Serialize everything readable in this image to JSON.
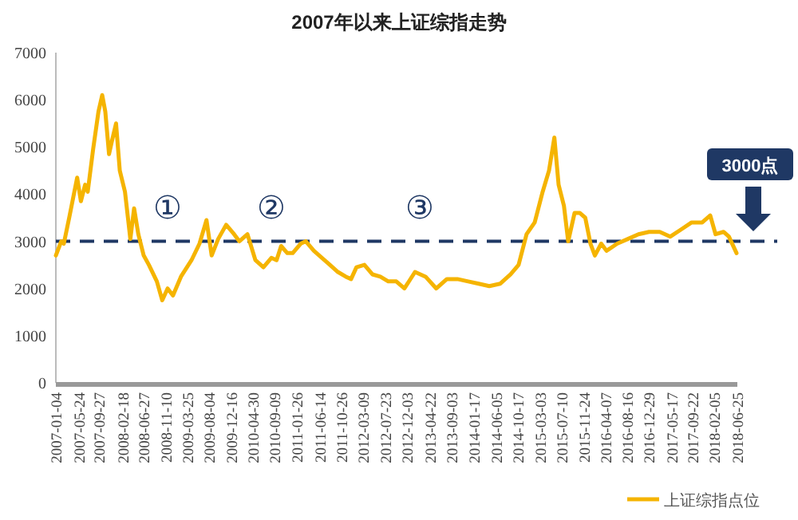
{
  "chart_data": {
    "type": "line",
    "title": "2007年以来上证综指走势",
    "annotations": [
      "①",
      "②",
      "③",
      "3000点"
    ],
    "xlim": [
      "2007-01-04",
      "2018-06-25"
    ],
    "xticks": [
      "2007-01-04",
      "2007-05-24",
      "2007-09-27",
      "2008-02-18",
      "2008-06-27",
      "2008-11-10",
      "2009-03-25",
      "2009-08-04",
      "2009-12-16",
      "2010-04-30",
      "2010-09-09",
      "2011-01-26",
      "2011-06-14",
      "2011-10-26",
      "2012-03-09",
      "2012-07-23",
      "2012-12-03",
      "2013-04-22",
      "2013-09-03",
      "2014-01-17",
      "2014-06-05",
      "2014-10-17",
      "2015-03-03",
      "2015-07-10",
      "2015-11-24",
      "2016-04-07",
      "2016-08-16",
      "2016-12-29",
      "2017-05-17",
      "2017-09-22",
      "2018-02-05",
      "2018-06-25"
    ],
    "ylim": [
      0,
      7000
    ],
    "yticks": [
      0,
      1000,
      2000,
      3000,
      4000,
      5000,
      6000,
      7000
    ],
    "ref_lines": [
      {
        "axis": "y",
        "value": 3000,
        "color": "#1f3864",
        "line_style": "dashed"
      }
    ],
    "legend": "bottom right",
    "series": [
      {
        "name": "上证综指点位",
        "color": "#f5b400",
        "x": [
          "2007-01-04",
          "2007-02-06",
          "2007-02-22",
          "2007-03-27",
          "2007-05-15",
          "2007-06-07",
          "2007-07-03",
          "2007-07-19",
          "2007-08-21",
          "2007-09-23",
          "2007-10-16",
          "2007-11-04",
          "2007-11-27",
          "2007-12-13",
          "2008-01-09",
          "2008-02-01",
          "2008-03-04",
          "2008-04-06",
          "2008-04-29",
          "2008-05-25",
          "2008-06-27",
          "2008-07-29",
          "2008-09-16",
          "2008-10-19",
          "2008-11-21",
          "2008-12-24",
          "2009-02-11",
          "2009-04-17",
          "2009-06-05",
          "2009-07-18",
          "2009-08-19",
          "2009-09-28",
          "2009-11-16",
          "2010-01-04",
          "2010-02-05",
          "2010-03-27",
          "2010-05-15",
          "2010-07-03",
          "2010-08-21",
          "2010-09-22",
          "2010-10-20",
          "2010-11-27",
          "2010-12-30",
          "2011-02-17",
          "2011-03-21",
          "2011-05-09",
          "2011-06-28",
          "2011-08-16",
          "2011-10-04",
          "2011-11-22",
          "2011-12-24",
          "2012-01-26",
          "2012-03-15",
          "2012-05-03",
          "2012-06-21",
          "2012-08-09",
          "2012-09-27",
          "2012-11-16",
          "2013-01-20",
          "2013-03-26",
          "2013-05-31",
          "2013-08-04",
          "2013-10-08",
          "2013-12-13",
          "2014-02-16",
          "2014-04-22",
          "2014-06-27",
          "2014-08-31",
          "2014-10-19",
          "2014-12-07",
          "2015-01-26",
          "2015-03-16",
          "2015-04-24",
          "2015-05-27",
          "2015-06-22",
          "2015-07-25",
          "2015-08-20",
          "2015-09-28",
          "2015-10-31",
          "2015-12-03",
          "2016-01-04",
          "2016-01-31",
          "2016-03-10",
          "2016-04-12",
          "2016-06-16",
          "2016-08-21",
          "2016-10-25",
          "2016-12-29",
          "2017-03-05",
          "2017-05-09",
          "2017-07-14",
          "2017-09-17",
          "2017-11-21",
          "2018-01-09",
          "2018-02-11",
          "2018-04-01",
          "2018-05-04",
          "2018-06-20"
        ],
        "values": [
          2700,
          3000,
          2950,
          3500,
          4350,
          3850,
          4200,
          4050,
          4950,
          5750,
          6100,
          5750,
          4850,
          5100,
          5500,
          4500,
          4050,
          3050,
          3700,
          3150,
          2700,
          2500,
          2150,
          1750,
          2000,
          1850,
          2250,
          2600,
          2950,
          3450,
          2700,
          3050,
          3350,
          3150,
          3000,
          3150,
          2600,
          2450,
          2650,
          2600,
          2900,
          2750,
          2750,
          2950,
          3000,
          2800,
          2650,
          2500,
          2350,
          2250,
          2200,
          2450,
          2500,
          2300,
          2250,
          2150,
          2150,
          2000,
          2350,
          2250,
          2000,
          2200,
          2200,
          2150,
          2100,
          2050,
          2100,
          2300,
          2500,
          3150,
          3400,
          4050,
          4500,
          5200,
          4200,
          3750,
          3000,
          3600,
          3600,
          3500,
          2950,
          2700,
          2950,
          2800,
          2950,
          3050,
          3150,
          3200,
          3200,
          3100,
          3250,
          3400,
          3400,
          3550,
          3150,
          3200,
          3100,
          2750
        ]
      }
    ]
  }
}
